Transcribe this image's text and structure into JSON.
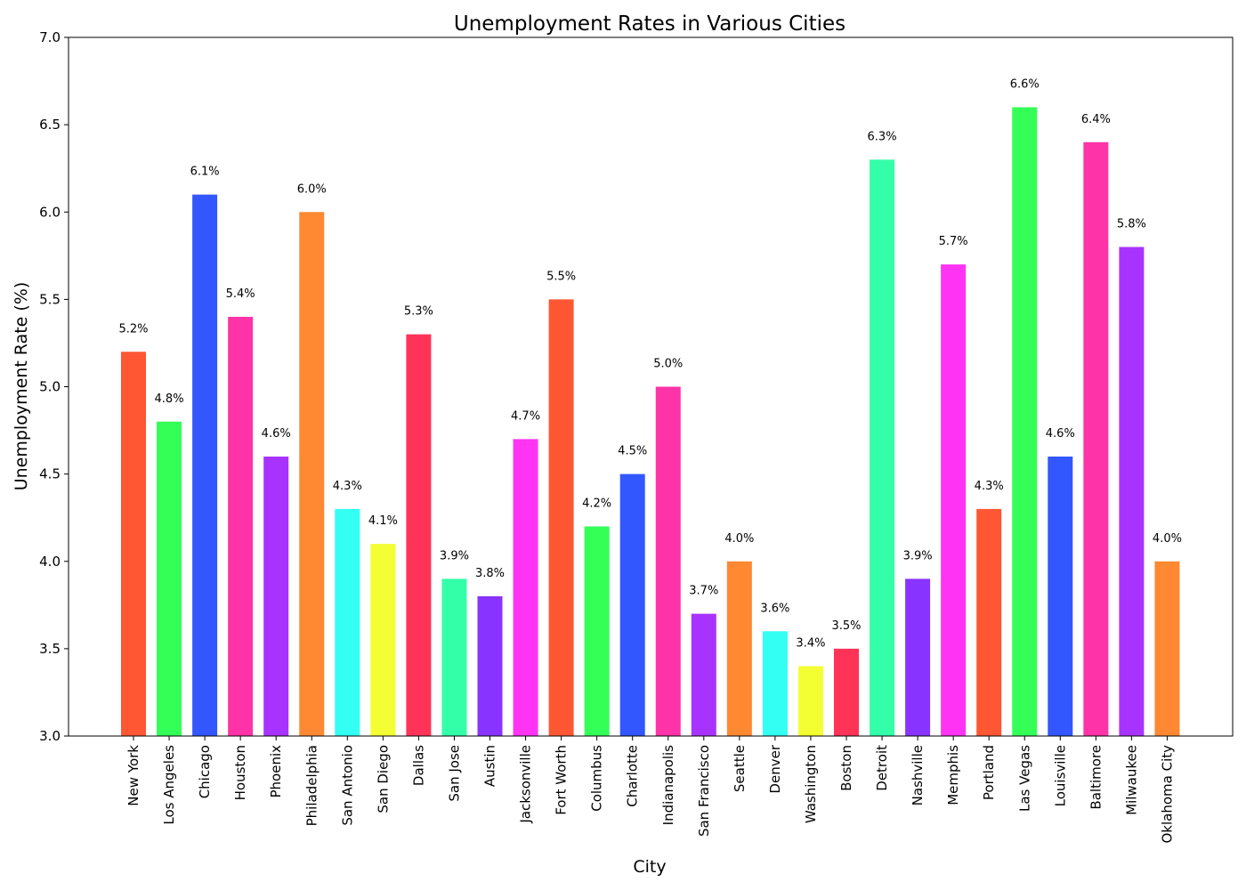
{
  "chart_data": {
    "type": "bar",
    "title": "Unemployment Rates in Various Cities",
    "xlabel": "City",
    "ylabel": "Unemployment Rate (%)",
    "ylim": [
      3.0,
      7.0
    ],
    "yticks": [
      "3.0",
      "3.5",
      "4.0",
      "4.5",
      "5.0",
      "5.5",
      "6.0",
      "6.5",
      "7.0"
    ],
    "grid": false,
    "legend": "none",
    "categories": [
      "New York",
      "Los Angeles",
      "Chicago",
      "Houston",
      "Phoenix",
      "Philadelphia",
      "San Antonio",
      "San Diego",
      "Dallas",
      "San Jose",
      "Austin",
      "Jacksonville",
      "Fort Worth",
      "Columbus",
      "Charlotte",
      "Indianapolis",
      "San Francisco",
      "Seattle",
      "Denver",
      "Washington",
      "Boston",
      "Detroit",
      "Nashville",
      "Memphis",
      "Portland",
      "Las Vegas",
      "Louisville",
      "Baltimore",
      "Milwaukee",
      "Oklahoma City"
    ],
    "values": [
      5.2,
      4.8,
      6.1,
      5.4,
      4.6,
      6.0,
      4.3,
      4.1,
      5.3,
      3.9,
      3.8,
      4.7,
      5.5,
      4.2,
      4.5,
      5.0,
      3.7,
      4.0,
      3.6,
      3.4,
      3.5,
      6.3,
      3.9,
      5.7,
      4.3,
      6.6,
      4.6,
      6.4,
      5.8,
      4.0
    ],
    "data_labels": [
      "5.2%",
      "4.8%",
      "6.1%",
      "5.4%",
      "4.6%",
      "6.0%",
      "4.3%",
      "4.1%",
      "5.3%",
      "3.9%",
      "3.8%",
      "4.7%",
      "5.5%",
      "4.2%",
      "4.5%",
      "5.0%",
      "3.7%",
      "4.0%",
      "3.6%",
      "3.4%",
      "3.5%",
      "6.3%",
      "3.9%",
      "5.7%",
      "4.3%",
      "6.6%",
      "4.6%",
      "6.4%",
      "5.8%",
      "4.0%"
    ],
    "colors": [
      "#ff5733",
      "#33ff57",
      "#3357ff",
      "#ff33a8",
      "#a833ff",
      "#ff8833",
      "#33fff3",
      "#f3ff33",
      "#ff3357",
      "#33ffa8",
      "#8833ff",
      "#ff33f3",
      "#ff5733",
      "#33ff57",
      "#3357ff",
      "#ff33a8",
      "#a833ff",
      "#ff8833",
      "#33fff3",
      "#f3ff33",
      "#ff3357",
      "#33ffa8",
      "#8833ff",
      "#ff33f3",
      "#ff5733",
      "#33ff57",
      "#3357ff",
      "#ff33a8",
      "#a833ff",
      "#ff8833"
    ]
  }
}
